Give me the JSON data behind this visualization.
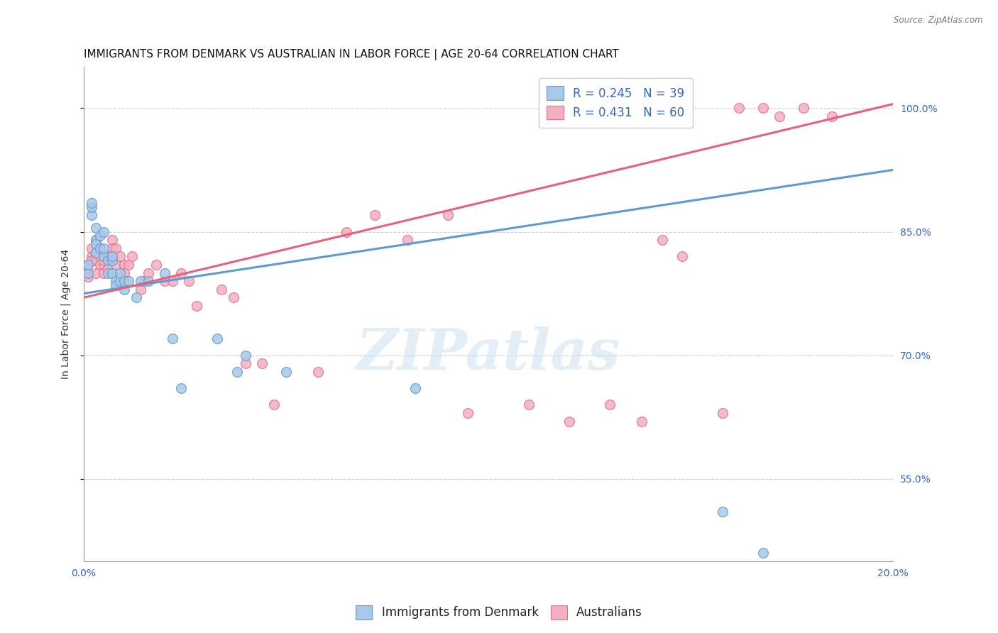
{
  "title": "IMMIGRANTS FROM DENMARK VS AUSTRALIAN IN LABOR FORCE | AGE 20-64 CORRELATION CHART",
  "source": "Source: ZipAtlas.com",
  "ylabel": "In Labor Force | Age 20-64",
  "xlim": [
    0.0,
    0.2
  ],
  "ylim": [
    0.45,
    1.05
  ],
  "yticks": [
    0.55,
    0.7,
    0.85,
    1.0
  ],
  "ytick_labels": [
    "55.0%",
    "70.0%",
    "85.0%",
    "100.0%"
  ],
  "xtick_labels": [
    "0.0%",
    "20.0%"
  ],
  "xtick_pos": [
    0.0,
    0.2
  ],
  "blue_color": "#a8c8e8",
  "pink_color": "#f4b0c0",
  "blue_edge_color": "#6699cc",
  "pink_edge_color": "#e07090",
  "blue_line_color": "#5b9bd5",
  "pink_line_color": "#e8607a",
  "text_color": "#3366cc",
  "legend_R_blue": "R = 0.245",
  "legend_N_blue": "N = 39",
  "legend_R_pink": "R = 0.431",
  "legend_N_pink": "N = 60",
  "watermark": "ZIPatlas",
  "background_color": "#ffffff",
  "grid_color": "#cccccc",
  "title_fontsize": 11,
  "axis_label_fontsize": 10,
  "tick_fontsize": 10,
  "legend_fontsize": 12,
  "blue_x": [
    0.001,
    0.001,
    0.002,
    0.002,
    0.002,
    0.003,
    0.003,
    0.003,
    0.003,
    0.004,
    0.004,
    0.005,
    0.005,
    0.005,
    0.006,
    0.006,
    0.007,
    0.007,
    0.007,
    0.008,
    0.008,
    0.009,
    0.009,
    0.01,
    0.01,
    0.011,
    0.013,
    0.014,
    0.016,
    0.02,
    0.022,
    0.024,
    0.033,
    0.038,
    0.04,
    0.05,
    0.082,
    0.158,
    0.168
  ],
  "blue_y": [
    0.8,
    0.81,
    0.87,
    0.88,
    0.885,
    0.84,
    0.855,
    0.835,
    0.825,
    0.845,
    0.83,
    0.82,
    0.83,
    0.85,
    0.815,
    0.8,
    0.8,
    0.815,
    0.82,
    0.79,
    0.785,
    0.79,
    0.8,
    0.78,
    0.79,
    0.79,
    0.77,
    0.79,
    0.79,
    0.8,
    0.72,
    0.66,
    0.72,
    0.68,
    0.7,
    0.68,
    0.66,
    0.51,
    0.46
  ],
  "pink_x": [
    0.001,
    0.001,
    0.001,
    0.002,
    0.002,
    0.002,
    0.003,
    0.003,
    0.003,
    0.003,
    0.004,
    0.004,
    0.004,
    0.005,
    0.005,
    0.005,
    0.006,
    0.006,
    0.007,
    0.007,
    0.007,
    0.008,
    0.008,
    0.009,
    0.01,
    0.01,
    0.011,
    0.012,
    0.014,
    0.015,
    0.016,
    0.018,
    0.02,
    0.022,
    0.024,
    0.026,
    0.028,
    0.034,
    0.037,
    0.04,
    0.044,
    0.047,
    0.058,
    0.065,
    0.072,
    0.08,
    0.09,
    0.095,
    0.11,
    0.12,
    0.13,
    0.138,
    0.143,
    0.148,
    0.158,
    0.162,
    0.168,
    0.172,
    0.178,
    0.185
  ],
  "pink_y": [
    0.8,
    0.81,
    0.795,
    0.82,
    0.83,
    0.815,
    0.825,
    0.84,
    0.8,
    0.815,
    0.83,
    0.82,
    0.81,
    0.81,
    0.8,
    0.815,
    0.82,
    0.805,
    0.84,
    0.83,
    0.82,
    0.81,
    0.83,
    0.82,
    0.81,
    0.8,
    0.81,
    0.82,
    0.78,
    0.79,
    0.8,
    0.81,
    0.79,
    0.79,
    0.8,
    0.79,
    0.76,
    0.78,
    0.77,
    0.69,
    0.69,
    0.64,
    0.68,
    0.85,
    0.87,
    0.84,
    0.87,
    0.63,
    0.64,
    0.62,
    0.64,
    0.62,
    0.84,
    0.82,
    0.63,
    1.0,
    1.0,
    0.99,
    1.0,
    0.99
  ]
}
